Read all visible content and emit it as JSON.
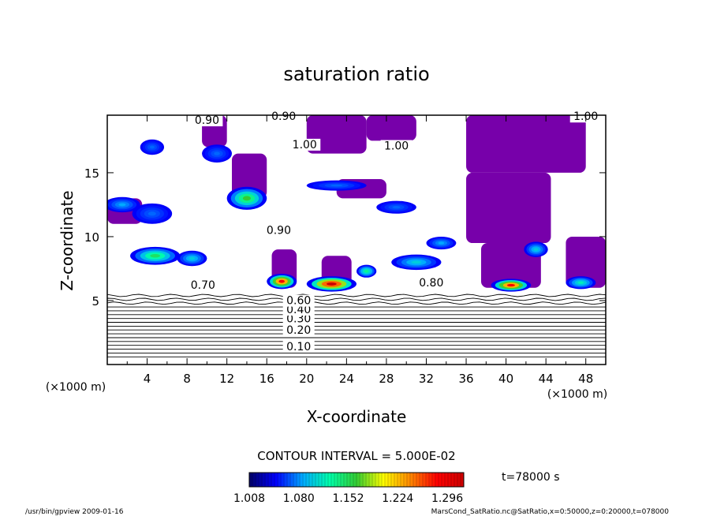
{
  "chart_data": {
    "type": "heatmap",
    "title": "saturation ratio",
    "xlabel": "X-coordinate",
    "ylabel": "Z-coordinate",
    "x_unit_note": "(×1000 m)",
    "y_unit_note": "(×1000 m)",
    "xlim": [
      0,
      50
    ],
    "ylim": [
      0,
      19.5
    ],
    "xticks": [
      "4",
      "8",
      "12",
      "16",
      "20",
      "24",
      "28",
      "32",
      "36",
      "40",
      "44",
      "48"
    ],
    "yticks": [
      "5",
      "10",
      "15"
    ],
    "contour_interval_text": "CONTOUR INTERVAL = 5.000E-02",
    "time_text": "t=78000 s",
    "colorbar": {
      "range": [
        1.008,
        1.32
      ],
      "ticks": [
        "1.008",
        "1.080",
        "1.152",
        "1.224",
        "1.296"
      ],
      "colors": [
        "#000066",
        "#0000ff",
        "#00aaff",
        "#00ffaa",
        "#33cc33",
        "#ffff00",
        "#ff8800",
        "#ff0000",
        "#cc0000"
      ]
    },
    "fill_color_saturated": "#7700aa",
    "contour_labels": [
      {
        "text": "0.10",
        "x": 19.2,
        "y": 1.3
      },
      {
        "text": "0.20",
        "x": 19.2,
        "y": 2.6
      },
      {
        "text": "0.30",
        "x": 19.2,
        "y": 3.5
      },
      {
        "text": "0.40",
        "x": 19.2,
        "y": 4.2
      },
      {
        "text": "0.60",
        "x": 19.2,
        "y": 4.9
      },
      {
        "text": "0.70",
        "x": 9.6,
        "y": 6.1
      },
      {
        "text": "0.80",
        "x": 32.5,
        "y": 6.3
      },
      {
        "text": "0.90",
        "x": 17.2,
        "y": 10.4
      },
      {
        "text": "0.90",
        "x": 10.0,
        "y": 19.0
      },
      {
        "text": "0.90",
        "x": 17.7,
        "y": 19.3
      },
      {
        "text": "1.00",
        "x": 19.8,
        "y": 17.1
      },
      {
        "text": "1.00",
        "x": 29.0,
        "y": 17.0
      },
      {
        "text": "1.00",
        "x": 48.0,
        "y": 19.3
      }
    ],
    "saturated_regions": [
      {
        "x0": 9.5,
        "x1": 12.0,
        "y0": 17.0,
        "y1": 19.5
      },
      {
        "x0": 20.0,
        "x1": 26.0,
        "y0": 16.5,
        "y1": 19.5
      },
      {
        "x0": 26.0,
        "x1": 31.0,
        "y0": 17.5,
        "y1": 19.5
      },
      {
        "x0": 36.0,
        "x1": 48.0,
        "y0": 15.0,
        "y1": 19.5
      },
      {
        "x0": 36.0,
        "x1": 44.5,
        "y0": 9.5,
        "y1": 15.0
      },
      {
        "x0": 37.5,
        "x1": 43.5,
        "y0": 6.0,
        "y1": 9.5
      },
      {
        "x0": 46.0,
        "x1": 50.0,
        "y0": 6.0,
        "y1": 10.0
      },
      {
        "x0": 16.5,
        "x1": 19.0,
        "y0": 6.0,
        "y1": 9.0
      },
      {
        "x0": 21.5,
        "x1": 24.5,
        "y0": 6.0,
        "y1": 8.5
      },
      {
        "x0": 0.0,
        "x1": 3.5,
        "y0": 11.0,
        "y1": 13.0
      },
      {
        "x0": 12.5,
        "x1": 16.0,
        "y0": 13.0,
        "y1": 16.5
      },
      {
        "x0": 23.0,
        "x1": 28.0,
        "y0": 13.0,
        "y1": 14.5
      }
    ],
    "cloud_blobs": [
      {
        "x": 1.5,
        "y": 12.5,
        "rx": 1.8,
        "ry": 0.6,
        "level": 0.25
      },
      {
        "x": 4.5,
        "y": 11.8,
        "rx": 2.0,
        "ry": 0.8,
        "level": 0.2
      },
      {
        "x": 4.8,
        "y": 8.5,
        "rx": 2.5,
        "ry": 0.7,
        "level": 0.45
      },
      {
        "x": 8.5,
        "y": 8.3,
        "rx": 1.5,
        "ry": 0.6,
        "level": 0.3
      },
      {
        "x": 14.0,
        "y": 13.0,
        "rx": 2.0,
        "ry": 0.9,
        "level": 0.5
      },
      {
        "x": 11.0,
        "y": 16.5,
        "rx": 1.5,
        "ry": 0.7,
        "level": 0.2
      },
      {
        "x": 4.5,
        "y": 17.0,
        "rx": 1.2,
        "ry": 0.6,
        "level": 0.2
      },
      {
        "x": 17.5,
        "y": 6.5,
        "rx": 1.5,
        "ry": 0.6,
        "level": 0.9
      },
      {
        "x": 22.5,
        "y": 6.3,
        "rx": 2.5,
        "ry": 0.6,
        "level": 1.0
      },
      {
        "x": 26.0,
        "y": 7.3,
        "rx": 1.0,
        "ry": 0.5,
        "level": 0.4
      },
      {
        "x": 31.0,
        "y": 8.0,
        "rx": 2.5,
        "ry": 0.6,
        "level": 0.3
      },
      {
        "x": 33.5,
        "y": 9.5,
        "rx": 1.5,
        "ry": 0.5,
        "level": 0.25
      },
      {
        "x": 40.5,
        "y": 6.2,
        "rx": 2.0,
        "ry": 0.5,
        "level": 0.9
      },
      {
        "x": 47.5,
        "y": 6.4,
        "rx": 1.5,
        "ry": 0.5,
        "level": 0.35
      },
      {
        "x": 29.0,
        "y": 12.3,
        "rx": 2.0,
        "ry": 0.5,
        "level": 0.2
      },
      {
        "x": 23.0,
        "y": 14.0,
        "rx": 3.0,
        "ry": 0.4,
        "level": 0.2
      },
      {
        "x": 43.0,
        "y": 9.0,
        "rx": 1.2,
        "ry": 0.6,
        "level": 0.3
      }
    ]
  },
  "footer": {
    "left": "/usr/bin/gpview   2009-01-16",
    "right": "MarsCond_SatRatio.nc@SatRatio,x=0:50000,z=0:20000,t=078000"
  }
}
